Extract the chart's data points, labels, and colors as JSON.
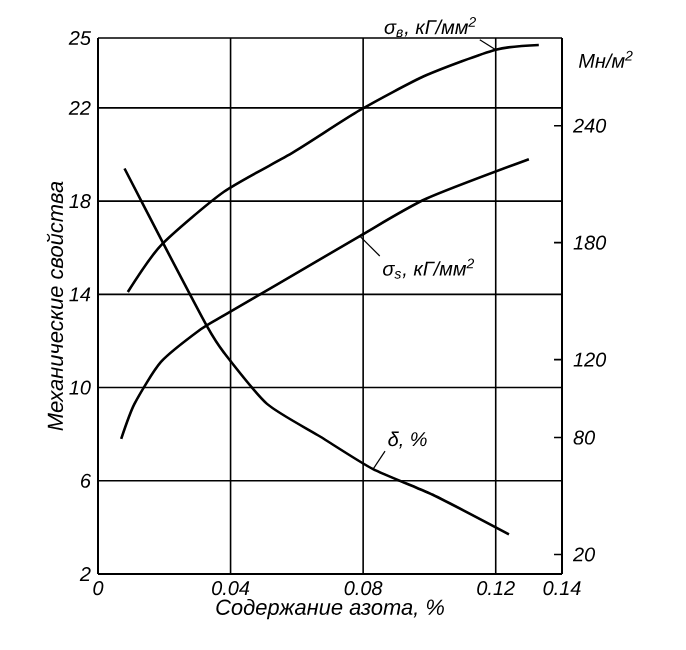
{
  "chart_data": {
    "type": "line",
    "xlabel": "Содержание азота, %",
    "ylabel": "Механические свойства",
    "y2label": "Мн/м$^{2}$",
    "xlim": [
      0,
      0.14
    ],
    "xticks": [
      0,
      0.04,
      0.08,
      0.12,
      0.14
    ],
    "ylim": [
      2,
      25
    ],
    "yticks": [
      2,
      6,
      10,
      14,
      18,
      22,
      25
    ],
    "y2lim": [
      10,
      285
    ],
    "y2ticks": [
      20,
      80,
      120,
      180,
      240
    ],
    "grid": true,
    "series": [
      {
        "name": "σ$_{в}$, кГ/мм$^{2}$",
        "color": "#000000",
        "x": [
          0.009,
          0.019,
          0.038,
          0.059,
          0.079,
          0.099,
          0.12,
          0.133
        ],
        "values": [
          14.1,
          16.1,
          18.4,
          20.1,
          21.9,
          23.4,
          24.5,
          24.7
        ]
      },
      {
        "name": "σ$_{s}$, кГ/мм$^{2}$",
        "color": "#000000",
        "x": [
          0.007,
          0.011,
          0.019,
          0.031,
          0.038,
          0.055,
          0.079,
          0.099,
          0.13
        ],
        "values": [
          7.8,
          9.3,
          11.1,
          12.5,
          13.1,
          14.5,
          16.5,
          18.1,
          19.8
        ]
      },
      {
        "name": "δ, %",
        "color": "#000000",
        "x": [
          0.008,
          0.02,
          0.033,
          0.038,
          0.051,
          0.067,
          0.083,
          0.101,
          0.124
        ],
        "values": [
          19.4,
          16.1,
          12.6,
          11.5,
          9.3,
          7.9,
          6.5,
          5.4,
          3.7
        ]
      }
    ]
  }
}
